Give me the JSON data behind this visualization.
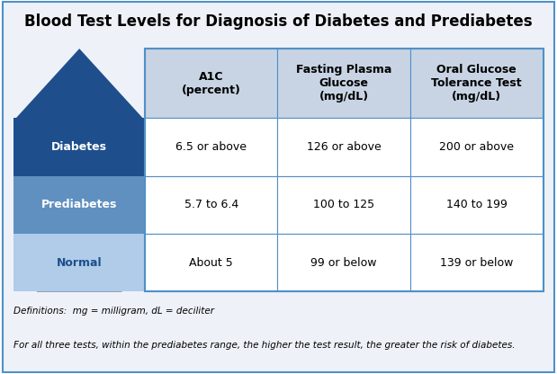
{
  "title": "Blood Test Levels for Diagnosis of Diabetes and Prediabetes",
  "col_headers": [
    "A1C\n(percent)",
    "Fasting Plasma\nGlucose\n(mg/dL)",
    "Oral Glucose\nTolerance Test\n(mg/dL)"
  ],
  "row_labels": [
    "Diabetes",
    "Prediabetes",
    "Normal"
  ],
  "row_label_colors": [
    "#1e4f8c",
    "#6090c0",
    "#b0cce8"
  ],
  "row_label_text_colors": [
    "#ffffff",
    "#ffffff",
    "#1e4f8c"
  ],
  "cell_data": [
    [
      "6.5 or above",
      "126 or above",
      "200 or above"
    ],
    [
      "5.7 to 6.4",
      "100 to 125",
      "140 to 199"
    ],
    [
      "About 5",
      "99 or below",
      "139 or below"
    ]
  ],
  "header_bg_color": "#c8d4e4",
  "cell_bg_color": "#ffffff",
  "grid_color": "#5090c8",
  "arrow_color": "#1e4f8c",
  "title_fontsize": 12,
  "header_fontsize": 9,
  "cell_fontsize": 9,
  "label_fontsize": 9,
  "footnote_line1": "Definitions:  mg = milligram, dL = deciliter",
  "footnote_line2": "For all three tests, within the prediabetes range, the higher the test result, the greater the risk of diabetes.",
  "footnote_fontsize": 7.5,
  "bg_color": "#eef2f8",
  "outer_border_color": "#5090c8",
  "fig_bg_color": "#ffffff"
}
